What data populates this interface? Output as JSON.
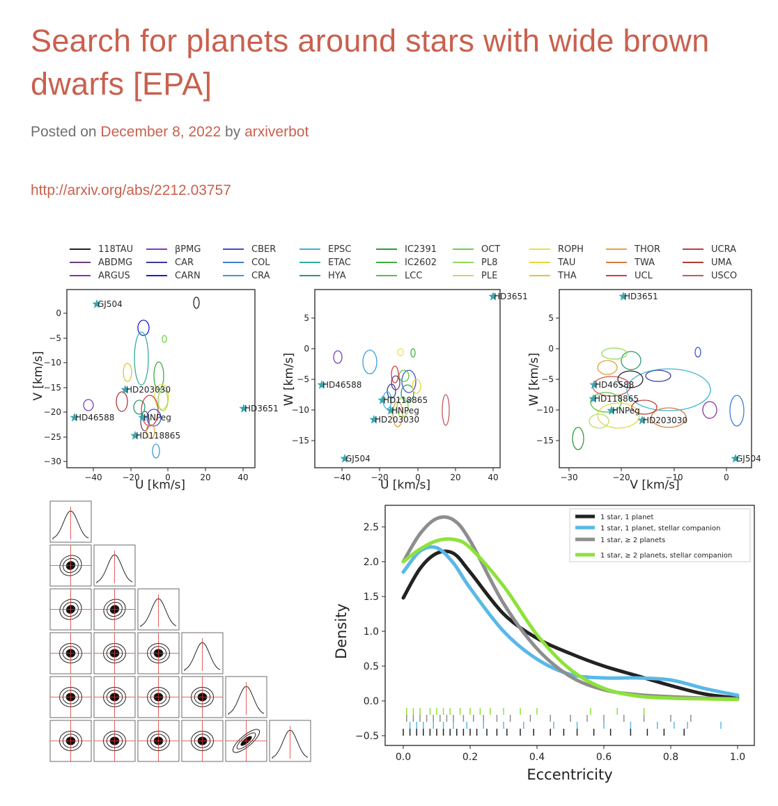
{
  "post": {
    "title": "Search for planets around stars with wide brown dwarfs [EPA]",
    "posted_prefix": "Posted on",
    "date": "December 8, 2022",
    "by": "by",
    "author": "arxiverbot",
    "link": "http://arxiv.org/abs/2212.03757"
  },
  "colors": {
    "accent": "#c9604e",
    "meta_text": "#6f6f6f"
  },
  "legend": [
    {
      "name": "118TAU",
      "color": "#222222"
    },
    {
      "name": "ABDMG",
      "color": "#6a3d7a"
    },
    {
      "name": "ARGUS",
      "color": "#8a2ea6"
    },
    {
      "name": "βPMG",
      "color": "#7a3cbf"
    },
    {
      "name": "CAR",
      "color": "#3a3a9c"
    },
    {
      "name": "CARN",
      "color": "#1c1ccc"
    },
    {
      "name": "CBER",
      "color": "#3b4fd1"
    },
    {
      "name": "COL",
      "color": "#3a7fd0"
    },
    {
      "name": "CRA",
      "color": "#3a9ad8"
    },
    {
      "name": "EPSC",
      "color": "#3ab3d0"
    },
    {
      "name": "ETAC",
      "color": "#2fae9e"
    },
    {
      "name": "HYA",
      "color": "#2a9a6c"
    },
    {
      "name": "IC2391",
      "color": "#2f9a3a"
    },
    {
      "name": "IC2602",
      "color": "#3fae3a"
    },
    {
      "name": "LCC",
      "color": "#55c23e"
    },
    {
      "name": "OCT",
      "color": "#6fd04a"
    },
    {
      "name": "PL8",
      "color": "#8ed95a"
    },
    {
      "name": "PLE",
      "color": "#b8e068"
    },
    {
      "name": "ROPH",
      "color": "#e6e24a"
    },
    {
      "name": "TAU",
      "color": "#e7d53a"
    },
    {
      "name": "THA",
      "color": "#e6c232"
    },
    {
      "name": "THOR",
      "color": "#e0a23a"
    },
    {
      "name": "TWA",
      "color": "#d87a38"
    },
    {
      "name": "UCL",
      "color": "#d63a3a"
    },
    {
      "name": "UCRA",
      "color": "#c43a3a"
    },
    {
      "name": "UMA",
      "color": "#b03a3a"
    },
    {
      "name": "USCO",
      "color": "#c4585c"
    }
  ],
  "panels": [
    {
      "xlabel": "U [km/s]",
      "ylabel": "V [km/s]",
      "xticks": [
        "−40",
        "−20",
        "0",
        "20",
        "40"
      ],
      "yticks": [
        "0",
        "−5",
        "−10",
        "−15",
        "−20",
        "−25",
        "−30"
      ],
      "stars": [
        {
          "label": "GJ504"
        },
        {
          "label": "HD203030"
        },
        {
          "label": "HD46588"
        },
        {
          "label": "HNPeg"
        },
        {
          "label": "HD118865"
        },
        {
          "label": "HD3651"
        }
      ]
    },
    {
      "xlabel": "U [km/s]",
      "ylabel": "W [km/s]",
      "xticks": [
        "−40",
        "−20",
        "0",
        "20",
        "40"
      ],
      "yticks": [
        "5",
        "0",
        "−5",
        "−10",
        "−15"
      ],
      "stars": [
        {
          "label": "HD3651"
        },
        {
          "label": "HD46588"
        },
        {
          "label": "HD118865"
        },
        {
          "label": "HNPeg"
        },
        {
          "label": "HD203030"
        },
        {
          "label": "GJ504"
        }
      ]
    },
    {
      "xlabel": "V [km/s]",
      "ylabel": "W [km/s]",
      "xticks": [
        "−30",
        "−20",
        "−10",
        "0"
      ],
      "yticks": [
        "5",
        "0",
        "−5",
        "−10",
        "−15"
      ],
      "stars": [
        {
          "label": "HD3651"
        },
        {
          "label": "HD46588"
        },
        {
          "label": "HD118865"
        },
        {
          "label": "HNPeg"
        },
        {
          "label": "HD203030"
        },
        {
          "label": "GJ504"
        }
      ]
    }
  ],
  "chart_data": {
    "type": "line",
    "xlabel": "Eccentricity",
    "ylabel": "Density",
    "xlim": [
      0.0,
      1.0
    ],
    "ylim": [
      -0.6,
      2.75
    ],
    "xticks": [
      "0.0",
      "0.2",
      "0.4",
      "0.6",
      "0.8",
      "1.0"
    ],
    "yticks": [
      "2.5",
      "2.0",
      "1.5",
      "1.0",
      "0.5",
      "0.0",
      "−0.5"
    ],
    "legend_position": "top-right",
    "grid": false,
    "x": [
      0.0,
      0.05,
      0.1,
      0.15,
      0.2,
      0.3,
      0.4,
      0.5,
      0.6,
      0.7,
      0.8,
      0.9,
      1.0
    ],
    "series": [
      {
        "name": "1 star, 1 planet",
        "color": "#222222",
        "values": [
          1.48,
          1.9,
          2.12,
          2.12,
          1.85,
          1.25,
          0.9,
          0.68,
          0.5,
          0.36,
          0.22,
          0.1,
          0.04
        ]
      },
      {
        "name": "1 star, 1 planet, stellar companion",
        "color": "#5ab8e8",
        "values": [
          1.85,
          2.15,
          2.2,
          1.98,
          1.62,
          1.0,
          0.6,
          0.38,
          0.33,
          0.33,
          0.3,
          0.18,
          0.08
        ]
      },
      {
        "name": "1 star,  ≥ 2 planets",
        "color": "#8e8e8e",
        "values": [
          2.0,
          2.4,
          2.62,
          2.6,
          2.3,
          1.4,
          0.75,
          0.35,
          0.16,
          0.09,
          0.06,
          0.04,
          0.03
        ]
      },
      {
        "name": "1 star,  ≥ 2 planets, stellar companion",
        "color": "#8ee23a",
        "values": [
          2.0,
          2.18,
          2.3,
          2.32,
          2.2,
          1.65,
          0.95,
          0.45,
          0.18,
          0.07,
          0.04,
          0.03,
          0.02
        ]
      }
    ],
    "rug": [
      {
        "series": "1 star,  ≥ 2 planets, stellar companion",
        "y": -0.15,
        "color": "#8ee23a",
        "values": [
          0.01,
          0.03,
          0.05,
          0.08,
          0.1,
          0.12,
          0.14,
          0.17,
          0.2,
          0.23,
          0.26,
          0.3,
          0.35,
          0.4,
          0.56,
          0.64,
          0.72
        ]
      },
      {
        "series": "1 star,  ≥ 2 planets",
        "y": -0.25,
        "color": "#8e8e8e",
        "values": [
          0.01,
          0.03,
          0.05,
          0.07,
          0.09,
          0.11,
          0.13,
          0.15,
          0.18,
          0.21,
          0.24,
          0.28,
          0.32,
          0.38,
          0.44,
          0.5,
          0.55,
          0.6,
          0.66,
          0.72,
          0.8,
          0.86
        ]
      },
      {
        "series": "1 star, 1 planet, stellar companion",
        "y": -0.35,
        "color": "#5ab8e8",
        "values": [
          0.02,
          0.04,
          0.06,
          0.09,
          0.12,
          0.15,
          0.19,
          0.24,
          0.3,
          0.36,
          0.45,
          0.52,
          0.6,
          0.68,
          0.76,
          0.81,
          0.85,
          0.95
        ]
      },
      {
        "series": "1 star, 1 planet",
        "y": -0.45,
        "color": "#222222",
        "values": [
          0.0,
          0.02,
          0.04,
          0.06,
          0.08,
          0.1,
          0.12,
          0.14,
          0.16,
          0.18,
          0.2,
          0.22,
          0.25,
          0.28,
          0.31,
          0.35,
          0.39,
          0.44,
          0.48,
          0.52,
          0.57,
          0.62,
          0.68,
          0.73,
          0.78,
          0.84
        ]
      }
    ]
  }
}
